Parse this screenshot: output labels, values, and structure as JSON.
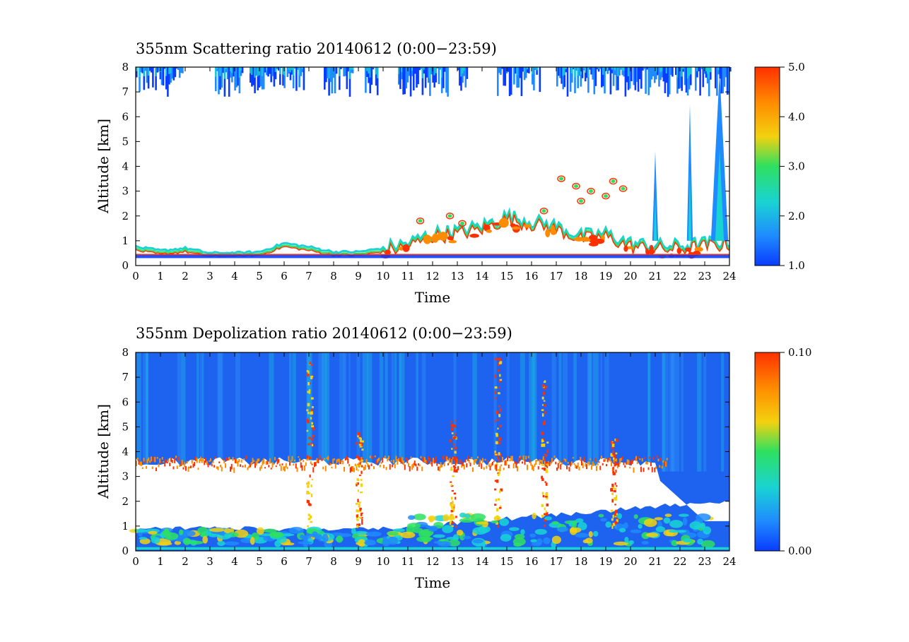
{
  "chart_data": [
    {
      "type": "heatmap",
      "title": "355nm Scattering ratio  20140612 (0:00−23:59)",
      "xlabel": "Time",
      "ylabel": "Altitude [km]",
      "xlim": [
        0,
        24
      ],
      "ylim": [
        0,
        8
      ],
      "xticks": [
        "0",
        "1",
        "2",
        "3",
        "4",
        "5",
        "6",
        "7",
        "8",
        "9",
        "10",
        "11",
        "12",
        "13",
        "14",
        "15",
        "16",
        "17",
        "18",
        "19",
        "20",
        "21",
        "22",
        "23",
        "24"
      ],
      "yticks": [
        "0",
        "1",
        "2",
        "3",
        "4",
        "5",
        "6",
        "7",
        "8"
      ],
      "colorbar": {
        "min": 1.0,
        "max": 5.0,
        "ticks": [
          "1.0",
          "2.0",
          "3.0",
          "4.0",
          "5.0"
        ]
      },
      "colors": [
        "#0a3cff",
        "#1f8bff",
        "#19d3d3",
        "#2ee060",
        "#f3d10f",
        "#ff8c00",
        "#ff3000"
      ],
      "features": {
        "cirrus_top_km": [
          6.5,
          8.0
        ],
        "boundary_layer_km": [
          [
            0,
            0.75
          ],
          [
            1,
            0.6
          ],
          [
            2,
            0.7
          ],
          [
            3,
            0.5
          ],
          [
            4,
            0.5
          ],
          [
            5,
            0.55
          ],
          [
            6,
            0.9
          ],
          [
            7,
            0.75
          ],
          [
            8,
            0.55
          ],
          [
            9,
            0.55
          ],
          [
            10,
            0.7
          ],
          [
            11,
            0.9
          ],
          [
            12,
            1.3
          ],
          [
            13,
            1.4
          ],
          [
            14,
            1.6
          ],
          [
            15,
            2.0
          ],
          [
            16,
            1.8
          ],
          [
            17,
            1.6
          ],
          [
            18,
            1.2
          ],
          [
            19,
            1.3
          ],
          [
            20,
            0.9
          ],
          [
            21,
            0.8
          ],
          [
            22,
            0.8
          ],
          [
            23,
            0.9
          ],
          [
            24,
            1.0
          ]
        ],
        "plumes": [
          {
            "x": 21.0,
            "top_km": 4.6
          },
          {
            "x": 22.4,
            "top_km": 6.5
          },
          {
            "x": 23.6,
            "top_km": 7.8
          }
        ]
      }
    },
    {
      "type": "heatmap",
      "title": "355nm Depolization ratio  20140612 (0:00−23:59)",
      "xlabel": "Time",
      "ylabel": "Altitude [km]",
      "xlim": [
        0,
        24
      ],
      "ylim": [
        0,
        8
      ],
      "xticks": [
        "0",
        "1",
        "2",
        "3",
        "4",
        "5",
        "6",
        "7",
        "8",
        "9",
        "10",
        "11",
        "12",
        "13",
        "14",
        "15",
        "16",
        "17",
        "18",
        "19",
        "20",
        "21",
        "22",
        "23",
        "24"
      ],
      "yticks": [
        "0",
        "1",
        "2",
        "3",
        "4",
        "5",
        "6",
        "7",
        "8"
      ],
      "colorbar": {
        "min": 0.0,
        "max": 0.1,
        "ticks": [
          "0.00",
          "0.10"
        ]
      },
      "colors": [
        "#0a3cff",
        "#1f8bff",
        "#19d3d3",
        "#2ee060",
        "#f3d10f",
        "#ff8c00",
        "#ff3000"
      ],
      "features": {
        "dust_layer_top_km": 3.6,
        "low_layer_km": [
          0.2,
          0.9
        ]
      }
    }
  ]
}
